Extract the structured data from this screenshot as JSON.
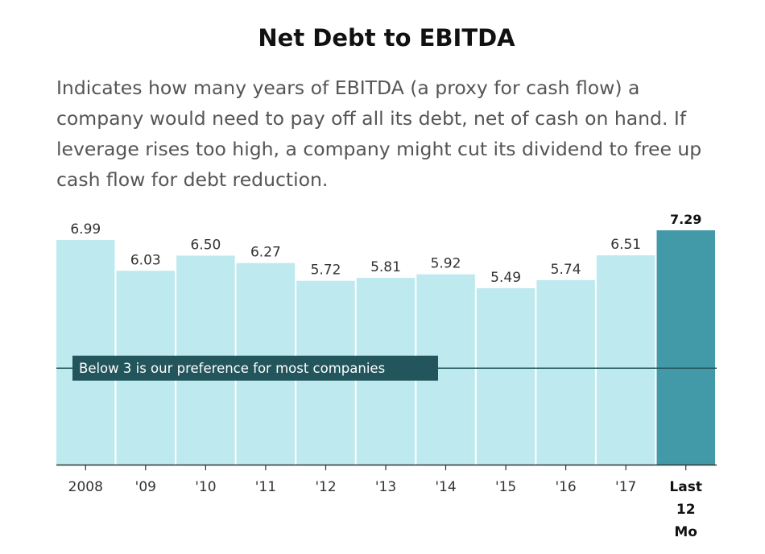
{
  "header": {
    "title": "Net Debt to EBITDA",
    "subtitle": "Indicates how many years of EBITDA (a proxy for cash flow) a company would need to pay off all its debt, net of cash on hand. If leverage rises too high, a company might cut its dividend to free up cash flow for debt reduction."
  },
  "chart_data": {
    "type": "bar",
    "title": "Net Debt to EBITDA",
    "categories": [
      "2008",
      "'09",
      "'10",
      "'11",
      "'12",
      "'13",
      "'14",
      "'15",
      "'16",
      "'17",
      "Last 12 Mo"
    ],
    "values": [
      6.99,
      6.03,
      6.5,
      6.27,
      5.72,
      5.81,
      5.92,
      5.49,
      5.74,
      6.51,
      7.29
    ],
    "value_labels": [
      "6.99",
      "6.03",
      "6.50",
      "6.27",
      "5.72",
      "5.81",
      "5.92",
      "5.49",
      "5.74",
      "6.51",
      "7.29"
    ],
    "highlight_index": 10,
    "ylim": [
      0,
      7.29
    ],
    "xlabel": "",
    "ylabel": "",
    "grid": false,
    "reference_line": {
      "value": 3,
      "label": "Below 3 is our preference for most companies"
    },
    "colors": {
      "bar": "#bde9ef",
      "highlight": "#4299a8",
      "reference": "#23555c",
      "axis": "#333333"
    }
  }
}
